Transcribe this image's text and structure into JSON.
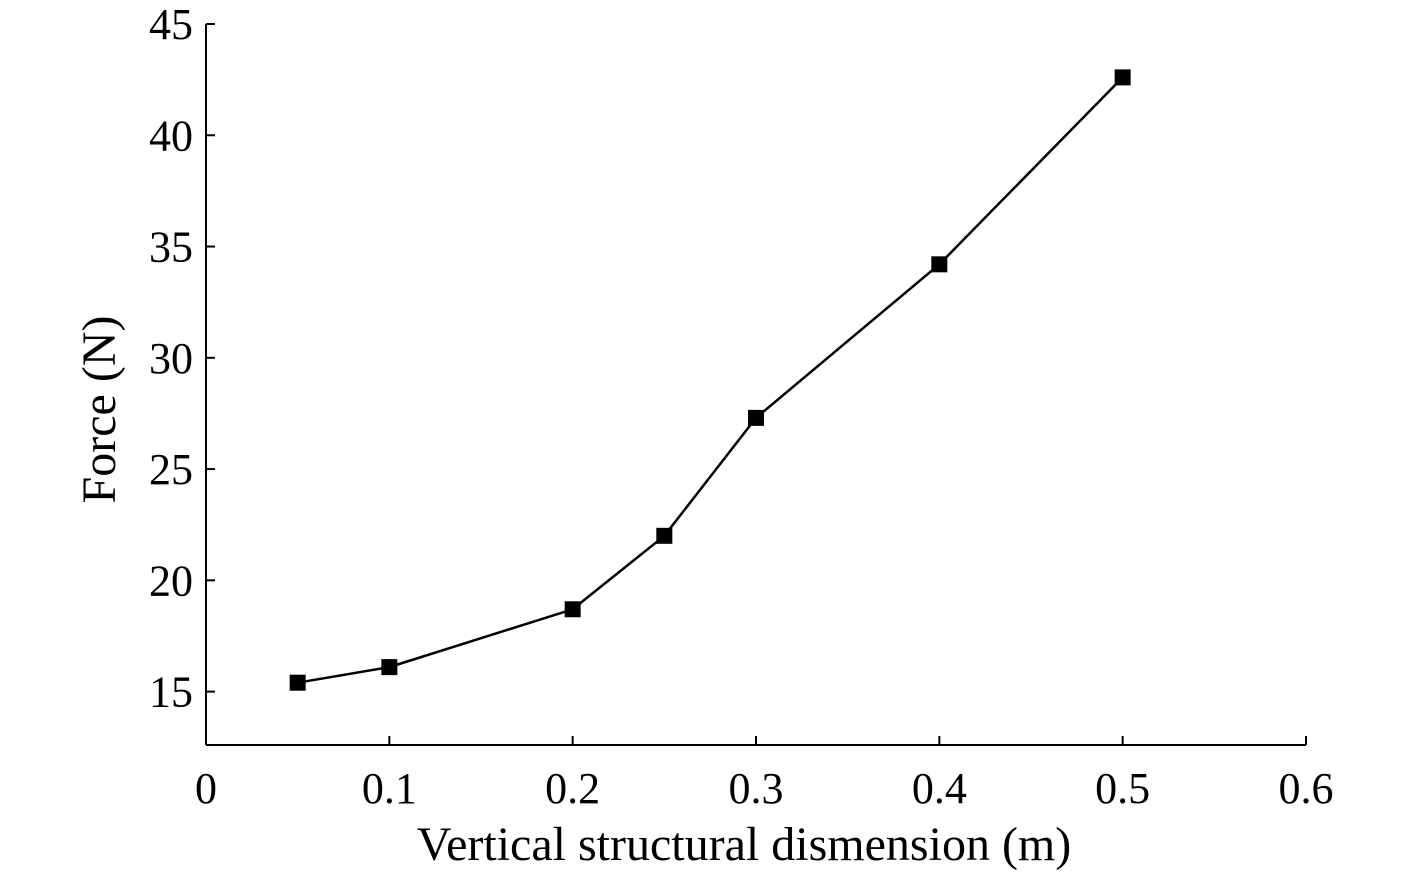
{
  "chart_data": {
    "type": "line",
    "title": "",
    "xlabel": "Vertical structural dismension (m)",
    "ylabel": "Force (N)",
    "xlim": [
      0,
      0.6
    ],
    "ylim": [
      12.6,
      45
    ],
    "x_ticks": [
      0,
      0.1,
      0.2,
      0.3,
      0.4,
      0.5,
      0.6
    ],
    "x_tick_labels": [
      "0",
      "0.1",
      "0.2",
      "0.3",
      "0.4",
      "0.5",
      "0.6"
    ],
    "y_ticks": [
      15,
      20,
      25,
      30,
      35,
      40,
      45
    ],
    "y_tick_labels": [
      "15",
      "20",
      "25",
      "30",
      "35",
      "40",
      "45"
    ],
    "grid": false,
    "legend": "none",
    "series": [
      {
        "x": [
          0.05,
          0.1,
          0.2,
          0.25,
          0.3,
          0.4,
          0.5
        ],
        "values": [
          15.4,
          16.1,
          18.7,
          22.0,
          27.3,
          34.2,
          42.6
        ],
        "color": "#000000",
        "marker": "square"
      }
    ]
  }
}
